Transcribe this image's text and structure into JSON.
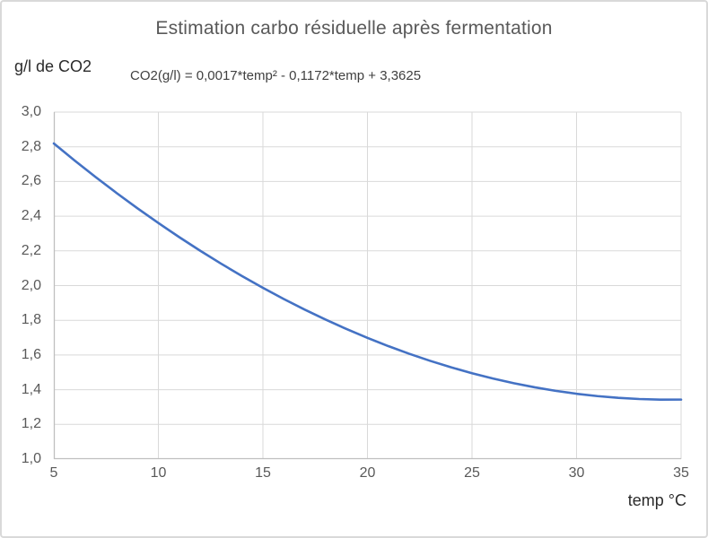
{
  "window": {
    "background_color": "#ffffff",
    "border_color": "#d9d9d9"
  },
  "chart_data": {
    "type": "line",
    "title": "Estimation carbo résiduelle après fermentation",
    "y_axis_title": "g/l de CO2",
    "x_axis_title": "temp °C",
    "annotation": "CO2(g/l) = 0,0017*temp² - 0,1172*temp + 3,3625",
    "formula_coefficients": {
      "a": 0.0017,
      "b": -0.1172,
      "c": 3.3625
    },
    "xlim": [
      5,
      35
    ],
    "ylim": [
      1.0,
      3.0
    ],
    "x_tick_values": [
      5,
      10,
      15,
      20,
      25,
      30,
      35
    ],
    "x_tick_labels": [
      "5",
      "10",
      "15",
      "20",
      "25",
      "30",
      "35"
    ],
    "y_tick_values": [
      3.0,
      2.8,
      2.6,
      2.4,
      2.2,
      2.0,
      1.8,
      1.6,
      1.4,
      1.2,
      1.0
    ],
    "y_tick_labels": [
      "3,0",
      "2,8",
      "2,6",
      "2,4",
      "2,2",
      "2,0",
      "1,8",
      "1,6",
      "1,4",
      "1,2",
      "1,0"
    ],
    "grid": true,
    "legend": "none",
    "line_color": "#4472C4",
    "gridline_color": "#d9d9d9",
    "axis_line_color": "#bfbfbf",
    "title_color": "#595959",
    "tick_label_color": "#595959",
    "series": [
      {
        "name": "CO2(g/l)",
        "x": [
          5,
          6,
          7,
          8,
          9,
          10,
          11,
          12,
          13,
          14,
          15,
          16,
          17,
          18,
          19,
          20,
          21,
          22,
          23,
          24,
          25,
          26,
          27,
          28,
          29,
          30,
          31,
          32,
          33,
          34,
          35
        ],
        "y": [
          2.819,
          2.7205,
          2.6254,
          2.5337,
          2.4454,
          2.3605,
          2.279,
          2.2009,
          2.1262,
          2.0549,
          1.987,
          1.9225,
          1.8614,
          1.8037,
          1.7494,
          1.6985,
          1.651,
          1.6069,
          1.5662,
          1.5289,
          1.495,
          1.4645,
          1.4374,
          1.4137,
          1.3934,
          1.3765,
          1.363,
          1.3529,
          1.3462,
          1.3429,
          1.343
        ]
      }
    ]
  }
}
